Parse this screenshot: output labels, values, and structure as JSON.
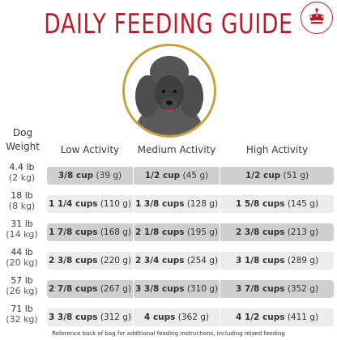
{
  "title": "DAILY FEEDING GUIDE",
  "colors": {
    "accent": "#b71c2a",
    "ring": "#c9a13b",
    "row_dark": "#cfcfcf",
    "row_light": "#ececec"
  },
  "icons": {
    "badge": "crown-icon",
    "photo": "poodle-photo"
  },
  "headers": {
    "dog_line1": "Dog",
    "dog_line2": "Weight",
    "low": "Low Activity",
    "medium": "Medium Activity",
    "high": "High Activity"
  },
  "rows": [
    {
      "lb": "4.4 lb",
      "kg": "(2 kg)",
      "low": {
        "cups": "3/8 cup",
        "g": "(39 g)"
      },
      "medium": {
        "cups": "1/2 cup",
        "g": "(45 g)"
      },
      "high": {
        "cups": "1/2 cup",
        "g": "(51 g)"
      }
    },
    {
      "lb": "18 lb",
      "kg": "(8 kg)",
      "low": {
        "cups": "1 1/4 cups",
        "g": "(110 g)"
      },
      "medium": {
        "cups": "1 3/8 cups",
        "g": "(128 g)"
      },
      "high": {
        "cups": "1 5/8 cups",
        "g": "(145 g)"
      }
    },
    {
      "lb": "31 lb",
      "kg": "(14 kg)",
      "low": {
        "cups": "1 7/8 cups",
        "g": "(168 g)"
      },
      "medium": {
        "cups": "2 1/8 cups",
        "g": "(195 g)"
      },
      "high": {
        "cups": "2 3/8 cups",
        "g": "(213 g)"
      }
    },
    {
      "lb": "44 lb",
      "kg": "(20 kg)",
      "low": {
        "cups": "2 3/8 cups",
        "g": "(220 g)"
      },
      "medium": {
        "cups": "2 3/4 cups",
        "g": "(254 g)"
      },
      "high": {
        "cups": "3 1/8 cups",
        "g": "(289 g)"
      }
    },
    {
      "lb": "57 lb",
      "kg": "(26 kg)",
      "low": {
        "cups": "2 7/8 cups",
        "g": "(267 g)"
      },
      "medium": {
        "cups": "3 3/8 cups",
        "g": "(310 g)"
      },
      "high": {
        "cups": "3 7/8 cups",
        "g": "(352 g)"
      }
    },
    {
      "lb": "71 lb",
      "kg": "(32 kg)",
      "low": {
        "cups": "3 3/8 cups",
        "g": "(312 g)"
      },
      "medium": {
        "cups": "4 cups",
        "g": "(362 g)"
      },
      "high": {
        "cups": "4 1/2 cups",
        "g": "(411 g)"
      }
    }
  ],
  "footnote": "Reference back of bag for additional feeding instructions, including mixed feeding"
}
